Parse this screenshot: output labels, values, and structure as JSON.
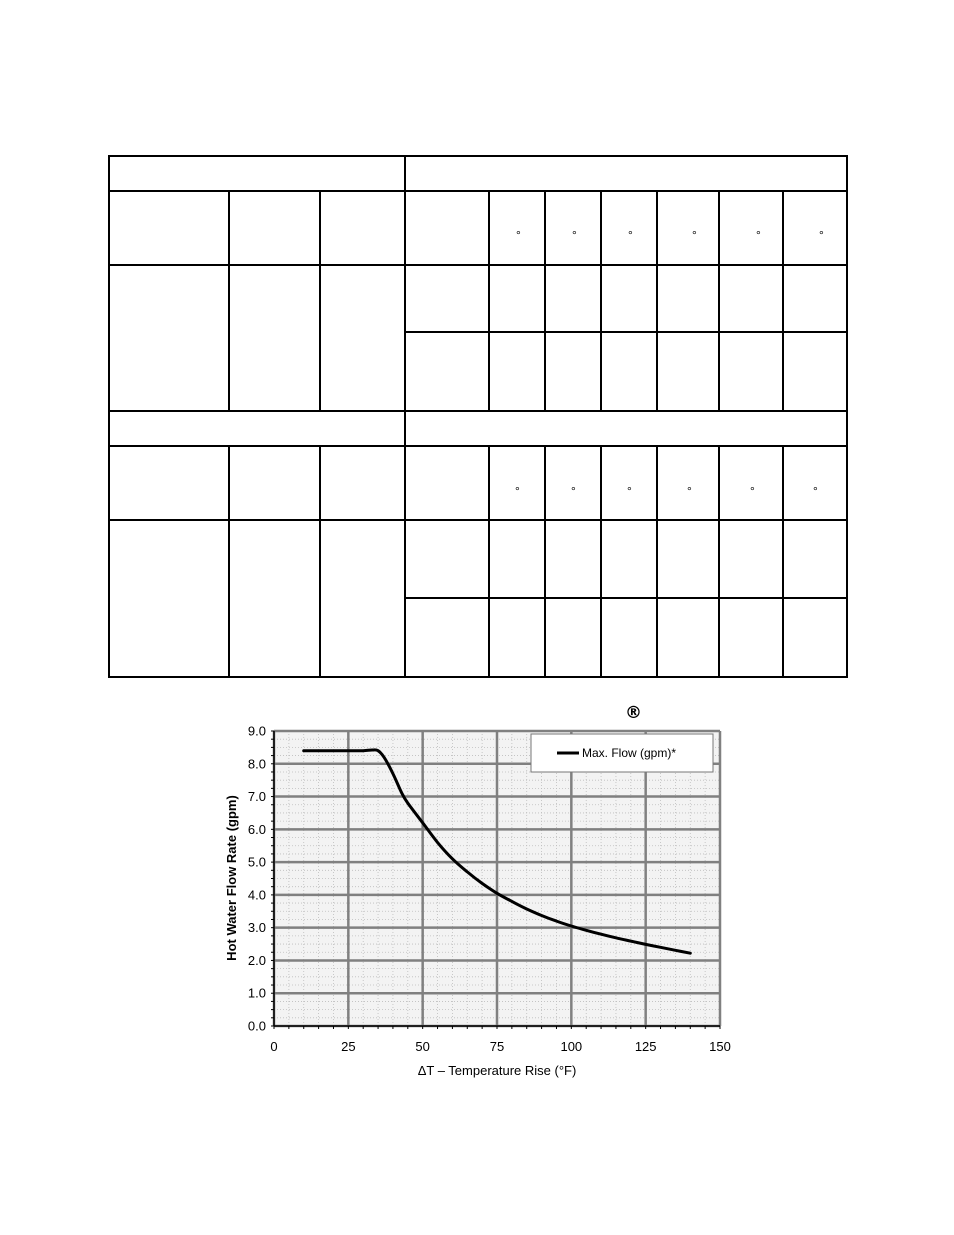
{
  "table": {
    "degree_symbol": "°"
  },
  "chart_data": {
    "type": "line",
    "trademark_symbol": "®",
    "xlabel": "ΔT – Temperature Rise (°F)",
    "ylabel": "Hot Water Flow Rate (gpm)",
    "xlim": [
      0,
      150
    ],
    "ylim": [
      0,
      9.0
    ],
    "x_ticks": [
      "0",
      "25",
      "50",
      "75",
      "100",
      "125",
      "150"
    ],
    "y_ticks": [
      "0.0",
      "1.0",
      "2.0",
      "3.0",
      "4.0",
      "5.0",
      "6.0",
      "7.0",
      "8.0",
      "9.0"
    ],
    "grid": true,
    "legend_position": "top-right",
    "series": [
      {
        "name": "Max. Flow (gpm)*",
        "x": [
          10,
          15,
          20,
          25,
          30,
          33,
          35,
          37,
          40,
          43,
          45,
          50,
          55,
          60,
          65,
          70,
          75,
          80,
          85,
          90,
          95,
          100,
          105,
          110,
          115,
          120,
          125,
          130,
          135,
          140
        ],
        "y": [
          8.4,
          8.4,
          8.4,
          8.4,
          8.4,
          8.42,
          8.4,
          8.2,
          7.7,
          7.1,
          6.8,
          6.2,
          5.6,
          5.1,
          4.7,
          4.35,
          4.05,
          3.8,
          3.57,
          3.37,
          3.2,
          3.05,
          2.92,
          2.8,
          2.69,
          2.59,
          2.49,
          2.4,
          2.31,
          2.22
        ]
      }
    ]
  }
}
